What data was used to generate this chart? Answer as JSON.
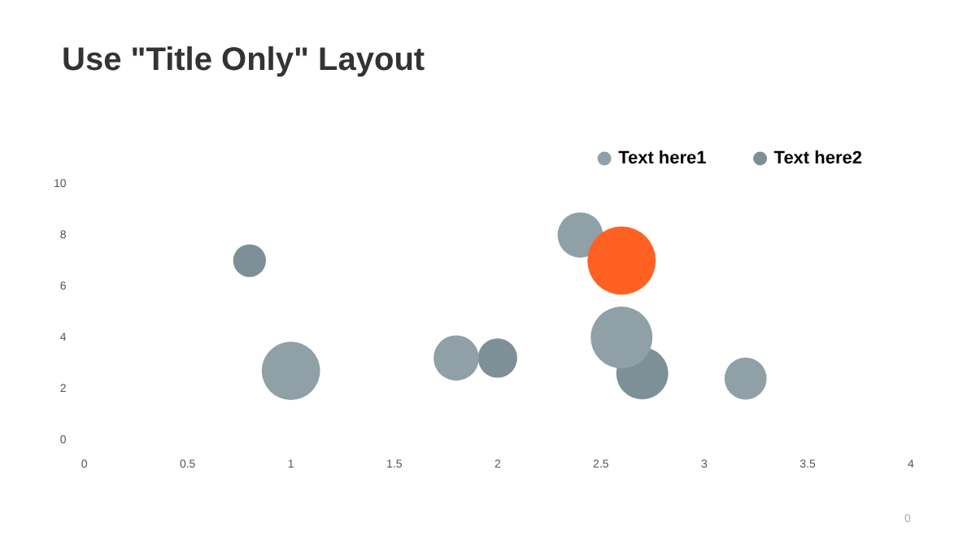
{
  "chart_data": {
    "type": "bubble",
    "title": "Use \"Title Only\" Layout",
    "annotations": [
      "0"
    ],
    "legend": "top right",
    "grid": false,
    "xlim": [
      0,
      4
    ],
    "xticks": [
      0,
      0.5,
      1,
      1.5,
      2,
      2.5,
      3,
      3.5,
      4
    ],
    "ylim": [
      0,
      10
    ],
    "yticks": [
      0,
      2,
      4,
      6,
      8,
      10
    ],
    "series": [
      {
        "name": "Text here1",
        "color": "#8fa1a7",
        "colors": [
          "#8fa1a7",
          "#8fa1a7",
          "#8fa1a7",
          "#ff6123",
          "#8fa1a7",
          "#8fa1a7"
        ],
        "x": [
          1,
          1.8,
          2.4,
          2.6,
          2.6,
          3.2
        ],
        "values": [
          2.7,
          3.2,
          8,
          7,
          4,
          2.4
        ],
        "sizes": [
          0.73,
          0.44,
          0.44,
          1,
          0.82,
          0.38
        ]
      },
      {
        "name": "Text here2",
        "color": "#7d8f97",
        "x": [
          0.8,
          2,
          2.7
        ],
        "values": [
          7,
          3.2,
          2.6
        ],
        "sizes": [
          0.23,
          0.33,
          0.58
        ]
      }
    ]
  }
}
